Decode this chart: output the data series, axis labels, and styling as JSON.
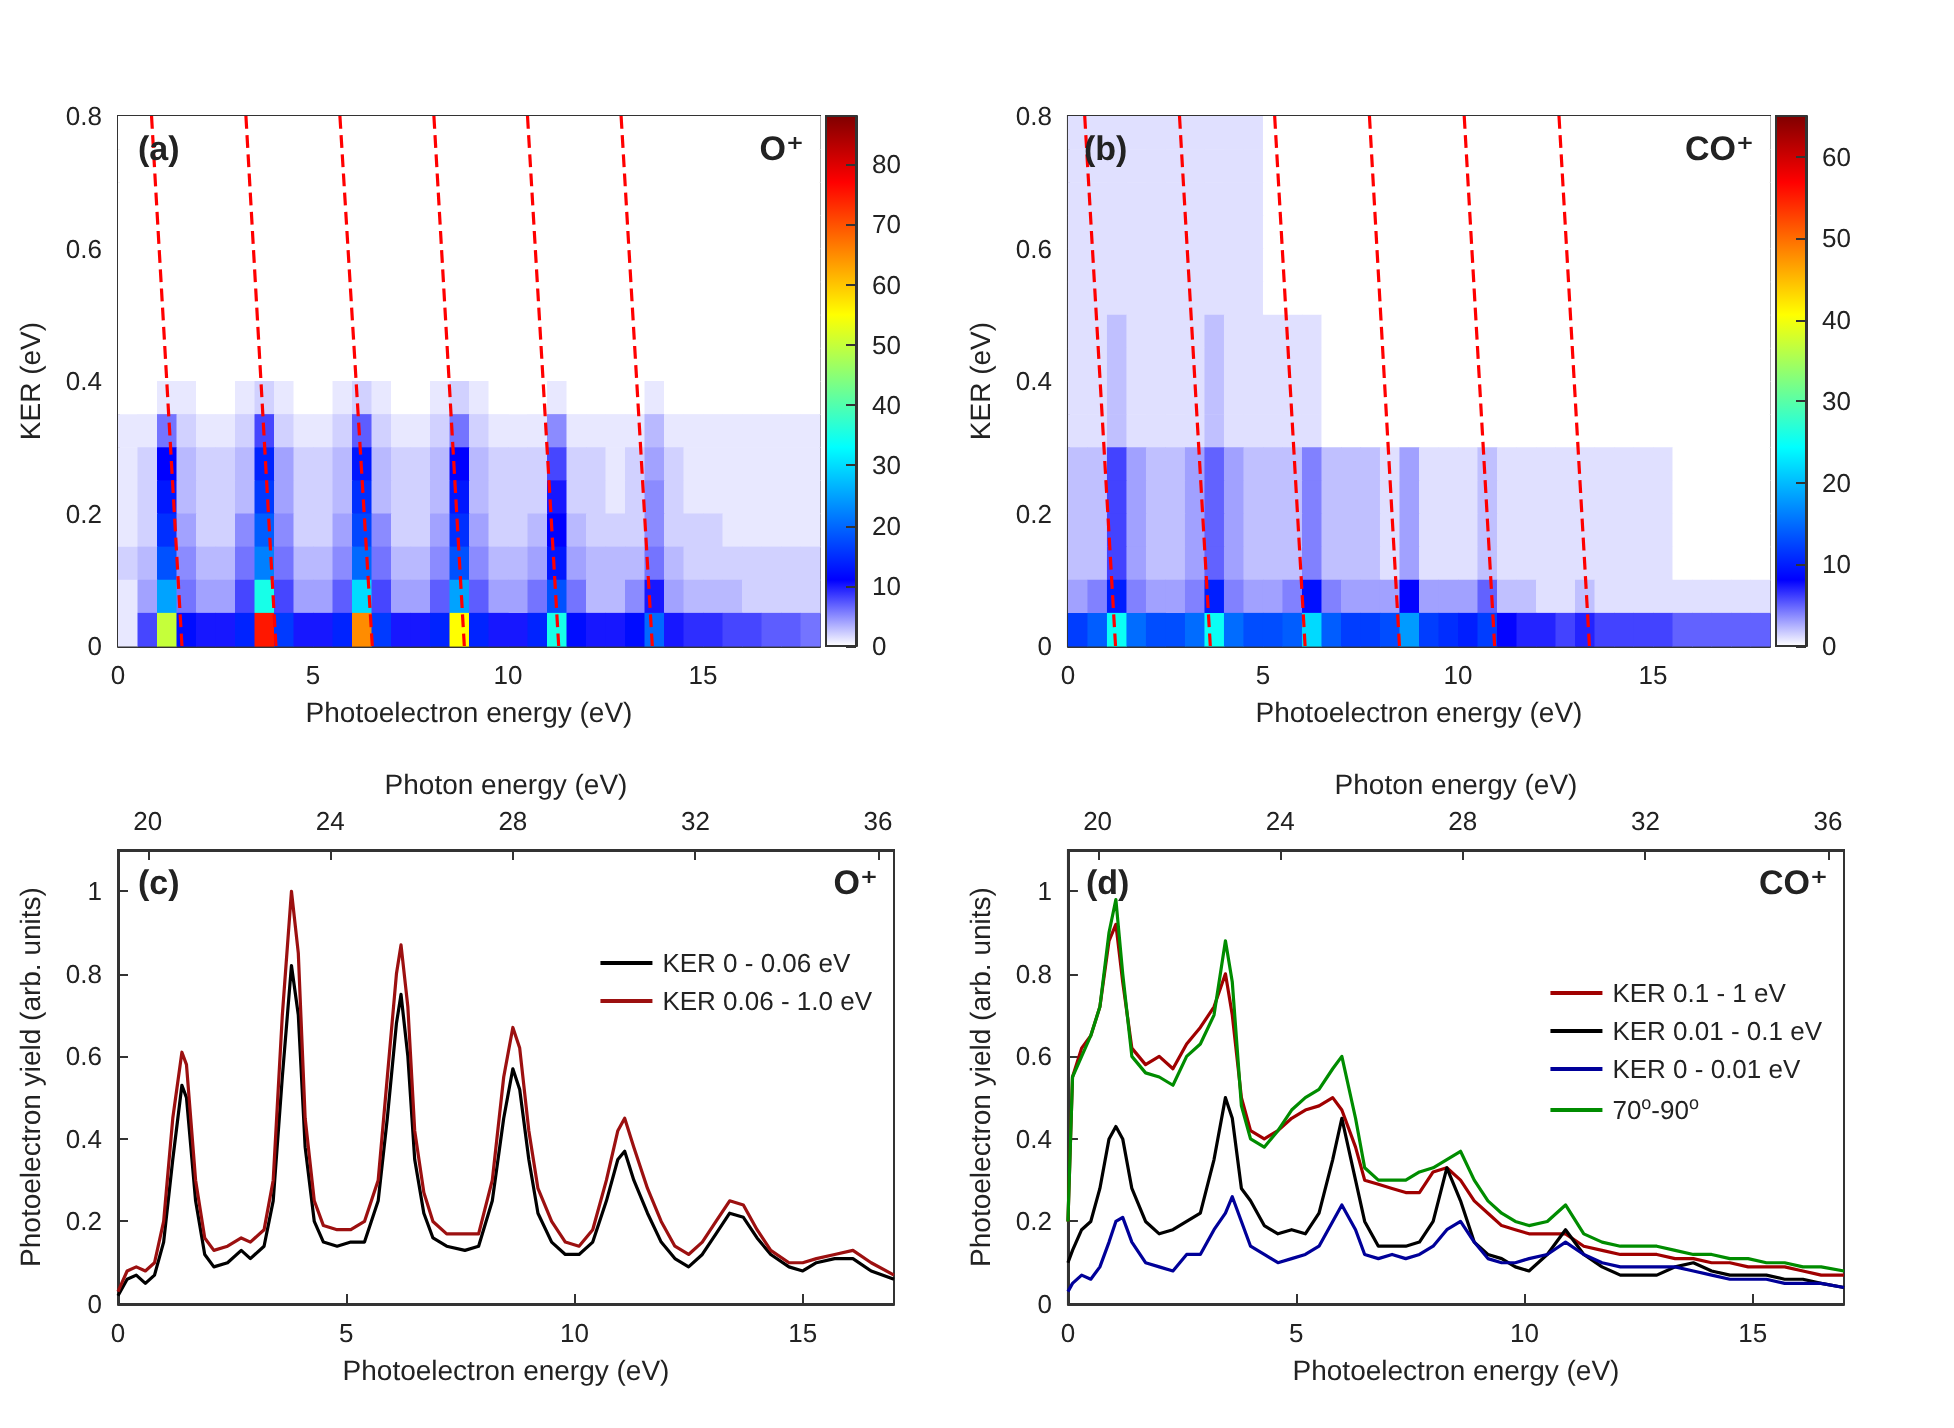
{
  "chart_data": [
    {
      "type": "heatmap",
      "xlabel": "Photoelectron energy (eV)",
      "ylabel": "KER (eV)",
      "annotations": [
        "(a)",
        "O⁺"
      ],
      "xlim": [
        0,
        18
      ],
      "xticks": [
        0,
        5,
        10,
        15
      ],
      "ylim": [
        0,
        0.8
      ],
      "yticks": [
        0,
        0.2,
        0.4,
        0.6,
        0.8
      ],
      "clim": [
        0,
        88
      ],
      "cticks": [
        0,
        10,
        20,
        30,
        40,
        50,
        60,
        70,
        80
      ],
      "line_style": "dashed",
      "marker": "none",
      "cells": [
        [
          0,
          0,
          0,
          0,
          0,
          0,
          0,
          0,
          0,
          0,
          0,
          0,
          0,
          0,
          0,
          0,
          0,
          0,
          0,
          0,
          0,
          0,
          0,
          0,
          0,
          0,
          0,
          0,
          0,
          0,
          0,
          0,
          0,
          0,
          0,
          0
        ],
        [
          0,
          0,
          0,
          0,
          0,
          0,
          0,
          0,
          0,
          0,
          0,
          0,
          0,
          0,
          0,
          0,
          0,
          0,
          0,
          0,
          0,
          0,
          0,
          0,
          0,
          0,
          0,
          0,
          0,
          0,
          0,
          0,
          0,
          0,
          0,
          0
        ],
        [
          0,
          0,
          0,
          0,
          0,
          0,
          0,
          0,
          0,
          0,
          0,
          0,
          0,
          0,
          0,
          0,
          0,
          0,
          0,
          0,
          0,
          0,
          0,
          0,
          0,
          0,
          0,
          0,
          0,
          0,
          0,
          0,
          0,
          0,
          0,
          0
        ],
        [
          0,
          0,
          0,
          0,
          0,
          0,
          0,
          0,
          0,
          0,
          0,
          0,
          0,
          0,
          0,
          0,
          0,
          0,
          0,
          0,
          0,
          0,
          0,
          0,
          0,
          0,
          0,
          0,
          0,
          0,
          0,
          0,
          0,
          0,
          0,
          0
        ],
        [
          0,
          0,
          0,
          0,
          0,
          0,
          0,
          0,
          0,
          0,
          0,
          0,
          0,
          0,
          0,
          0,
          0,
          0,
          0,
          0,
          0,
          0,
          0,
          0,
          0,
          0,
          0,
          0,
          0,
          0,
          0,
          0,
          0,
          0,
          0,
          0
        ],
        [
          0,
          0,
          0,
          0,
          0,
          0,
          0,
          0,
          0,
          0,
          0,
          0,
          0,
          0,
          0,
          0,
          0,
          0,
          0,
          0,
          0,
          0,
          0,
          0,
          0,
          0,
          0,
          0,
          0,
          0,
          0,
          0,
          0,
          0,
          0,
          0
        ],
        [
          0,
          0,
          0,
          0,
          0,
          0,
          0,
          0,
          0,
          0,
          0,
          0,
          0,
          0,
          0,
          0,
          0,
          0,
          0,
          0,
          0,
          0,
          0,
          0,
          0,
          0,
          0,
          0,
          0,
          0,
          0,
          0,
          0,
          0,
          0,
          0
        ],
        [
          0,
          0,
          0,
          0,
          0,
          0,
          0,
          0,
          0,
          0,
          0,
          0,
          0,
          0,
          0,
          0,
          0,
          0,
          0,
          0,
          0,
          0,
          0,
          0,
          0,
          0,
          0,
          0,
          0,
          0,
          0,
          0,
          0,
          0,
          0,
          0
        ],
        [
          0,
          0,
          1,
          1,
          0,
          0,
          1,
          2,
          1,
          0,
          0,
          1,
          2,
          1,
          0,
          0,
          1,
          2,
          1,
          0,
          0,
          0,
          1,
          0,
          0,
          0,
          0,
          1,
          0,
          0,
          0,
          0,
          0,
          0,
          0,
          0
        ],
        [
          1,
          1,
          6,
          2,
          1,
          1,
          2,
          8,
          2,
          1,
          1,
          2,
          7,
          2,
          1,
          1,
          2,
          6,
          2,
          1,
          1,
          1,
          5,
          1,
          1,
          1,
          1,
          3,
          1,
          1,
          1,
          1,
          1,
          1,
          1,
          1
        ],
        [
          1,
          2,
          11,
          3,
          2,
          2,
          3,
          14,
          4,
          2,
          2,
          3,
          13,
          3,
          2,
          2,
          3,
          11,
          3,
          2,
          2,
          2,
          8,
          2,
          2,
          1,
          2,
          4,
          2,
          1,
          1,
          1,
          1,
          1,
          1,
          1
        ],
        [
          1,
          2,
          13,
          3,
          2,
          2,
          3,
          16,
          4,
          2,
          2,
          3,
          15,
          3,
          2,
          2,
          3,
          13,
          3,
          2,
          2,
          2,
          10,
          2,
          2,
          1,
          2,
          5,
          2,
          1,
          1,
          1,
          1,
          1,
          1,
          1
        ],
        [
          1,
          2,
          15,
          4,
          2,
          2,
          5,
          19,
          5,
          2,
          2,
          4,
          17,
          5,
          2,
          2,
          4,
          15,
          4,
          2,
          2,
          3,
          11,
          3,
          2,
          2,
          2,
          5,
          2,
          2,
          2,
          1,
          1,
          1,
          1,
          1
        ],
        [
          2,
          3,
          18,
          5,
          3,
          3,
          6,
          22,
          6,
          3,
          3,
          5,
          20,
          6,
          3,
          3,
          5,
          18,
          5,
          3,
          3,
          4,
          13,
          4,
          3,
          3,
          3,
          6,
          3,
          2,
          2,
          2,
          2,
          2,
          2,
          2
        ],
        [
          1,
          4,
          25,
          6,
          4,
          4,
          8,
          35,
          8,
          4,
          4,
          7,
          30,
          8,
          4,
          4,
          7,
          25,
          7,
          4,
          4,
          6,
          18,
          6,
          3,
          3,
          5,
          10,
          4,
          3,
          3,
          3,
          2,
          2,
          2,
          2
        ],
        [
          1,
          8,
          50,
          12,
          10,
          10,
          14,
          75,
          16,
          10,
          10,
          14,
          65,
          16,
          10,
          10,
          14,
          55,
          14,
          10,
          10,
          14,
          35,
          12,
          10,
          10,
          12,
          20,
          10,
          9,
          9,
          8,
          8,
          7,
          7,
          6
        ]
      ],
      "series": [
        {
          "type": "line",
          "color": "#ff0000",
          "x": [
            0.86,
            1.64
          ],
          "values": [
            0.8,
            0
          ]
        },
        {
          "type": "line",
          "color": "#ff0000",
          "x": [
            3.28,
            4.05
          ],
          "values": [
            0.8,
            0
          ]
        },
        {
          "type": "line",
          "color": "#ff0000",
          "x": [
            5.69,
            6.52
          ],
          "values": [
            0.8,
            0
          ]
        },
        {
          "type": "line",
          "color": "#ff0000",
          "x": [
            8.1,
            8.88
          ],
          "values": [
            0.8,
            0
          ]
        },
        {
          "type": "line",
          "color": "#ff0000",
          "x": [
            10.5,
            11.3
          ],
          "values": [
            0.8,
            0
          ]
        },
        {
          "type": "line",
          "color": "#ff0000",
          "x": [
            12.9,
            13.7
          ],
          "values": [
            0.8,
            0
          ]
        }
      ]
    },
    {
      "type": "heatmap",
      "xlabel": "Photoelectron energy (eV)",
      "ylabel": "KER (eV)",
      "annotations": [
        "(b)",
        "CO⁺"
      ],
      "xlim": [
        0,
        18
      ],
      "xticks": [
        0,
        5,
        10,
        15
      ],
      "ylim": [
        0,
        0.8
      ],
      "yticks": [
        0,
        0.2,
        0.4,
        0.6,
        0.8
      ],
      "clim": [
        0,
        65
      ],
      "cticks": [
        0,
        10,
        20,
        30,
        40,
        50,
        60
      ],
      "line_style": "dashed",
      "marker": "none",
      "cells": [
        [
          1,
          1,
          1,
          1,
          1,
          1,
          1,
          1,
          1,
          1,
          0,
          0,
          0,
          0,
          0,
          0,
          0,
          0,
          0,
          0,
          0,
          0,
          0,
          0,
          0,
          0,
          0,
          0,
          0,
          0,
          0,
          0,
          0,
          0,
          0,
          0
        ],
        [
          1,
          1,
          1,
          1,
          1,
          1,
          1,
          1,
          1,
          1,
          0,
          0,
          0,
          0,
          0,
          0,
          0,
          0,
          0,
          0,
          0,
          0,
          0,
          0,
          0,
          0,
          0,
          0,
          0,
          0,
          0,
          0,
          0,
          0,
          0,
          0
        ],
        [
          1,
          1,
          1,
          1,
          1,
          1,
          1,
          1,
          1,
          1,
          0,
          0,
          0,
          0,
          0,
          0,
          0,
          0,
          0,
          0,
          0,
          0,
          0,
          0,
          0,
          0,
          0,
          0,
          0,
          0,
          0,
          0,
          0,
          0,
          0,
          0
        ],
        [
          1,
          1,
          1,
          1,
          1,
          1,
          1,
          1,
          1,
          1,
          0,
          0,
          0,
          0,
          0,
          0,
          0,
          0,
          0,
          0,
          0,
          0,
          0,
          0,
          0,
          0,
          0,
          0,
          0,
          0,
          0,
          0,
          0,
          0,
          0,
          0
        ],
        [
          1,
          1,
          1,
          1,
          1,
          1,
          1,
          1,
          1,
          1,
          0,
          0,
          0,
          0,
          0,
          0,
          0,
          0,
          0,
          0,
          0,
          0,
          0,
          0,
          0,
          0,
          0,
          0,
          0,
          0,
          0,
          0,
          0,
          0,
          0,
          0
        ],
        [
          1,
          1,
          1,
          1,
          1,
          1,
          1,
          1,
          1,
          1,
          0,
          0,
          0,
          0,
          0,
          0,
          0,
          0,
          0,
          0,
          0,
          0,
          0,
          0,
          0,
          0,
          0,
          0,
          0,
          0,
          0,
          0,
          0,
          0,
          0,
          0
        ],
        [
          1,
          1,
          2,
          1,
          1,
          1,
          1,
          2,
          1,
          1,
          1,
          1,
          1,
          0,
          0,
          0,
          0,
          0,
          0,
          0,
          0,
          0,
          0,
          0,
          0,
          0,
          0,
          0,
          0,
          0,
          0,
          0,
          0,
          0,
          0,
          0
        ],
        [
          1,
          1,
          2,
          1,
          1,
          1,
          1,
          2,
          1,
          1,
          1,
          1,
          1,
          0,
          0,
          0,
          0,
          0,
          0,
          0,
          0,
          0,
          0,
          0,
          0,
          0,
          0,
          0,
          0,
          0,
          0,
          0,
          0,
          0,
          0,
          0
        ],
        [
          1,
          1,
          2,
          1,
          1,
          1,
          1,
          2,
          1,
          1,
          1,
          1,
          1,
          0,
          0,
          0,
          0,
          0,
          0,
          0,
          0,
          0,
          0,
          0,
          0,
          0,
          0,
          0,
          0,
          0,
          0,
          0,
          0,
          0,
          0,
          0
        ],
        [
          1,
          1,
          2,
          1,
          1,
          1,
          1,
          2,
          1,
          1,
          1,
          1,
          1,
          0,
          0,
          0,
          0,
          0,
          0,
          0,
          0,
          0,
          0,
          0,
          0,
          0,
          0,
          0,
          0,
          0,
          0,
          0,
          0,
          0,
          0,
          0
        ],
        [
          2,
          2,
          6,
          3,
          2,
          2,
          3,
          5,
          3,
          2,
          2,
          2,
          4,
          2,
          2,
          2,
          1,
          3,
          1,
          1,
          1,
          2,
          1,
          1,
          1,
          1,
          1,
          1,
          1,
          1,
          1,
          0,
          0,
          0,
          0,
          0
        ],
        [
          2,
          2,
          6,
          3,
          2,
          2,
          3,
          5,
          3,
          2,
          2,
          2,
          4,
          2,
          2,
          2,
          1,
          3,
          1,
          1,
          1,
          2,
          1,
          1,
          1,
          1,
          1,
          1,
          1,
          1,
          1,
          0,
          0,
          0,
          0,
          0
        ],
        [
          2,
          2,
          6,
          3,
          2,
          2,
          3,
          5,
          3,
          2,
          2,
          2,
          4,
          2,
          2,
          2,
          1,
          3,
          1,
          1,
          1,
          2,
          1,
          1,
          1,
          1,
          1,
          1,
          1,
          1,
          1,
          0,
          0,
          0,
          0,
          0
        ],
        [
          2,
          2,
          6,
          3,
          2,
          2,
          3,
          5,
          3,
          2,
          2,
          2,
          4,
          2,
          2,
          2,
          1,
          3,
          1,
          1,
          1,
          2,
          1,
          1,
          1,
          1,
          1,
          1,
          1,
          1,
          1,
          0,
          0,
          0,
          0,
          0
        ],
        [
          3,
          4,
          10,
          4,
          3,
          3,
          4,
          10,
          4,
          3,
          3,
          4,
          9,
          4,
          3,
          3,
          3,
          8,
          3,
          3,
          3,
          5,
          2,
          2,
          1,
          1,
          2,
          1,
          1,
          1,
          1,
          1,
          1,
          1,
          1,
          1
        ],
        [
          12,
          14,
          25,
          15,
          13,
          13,
          15,
          25,
          15,
          13,
          13,
          14,
          22,
          14,
          12,
          12,
          13,
          18,
          12,
          11,
          10,
          12,
          8,
          7,
          7,
          6,
          7,
          6,
          6,
          6,
          6,
          5,
          5,
          5,
          5,
          5
        ]
      ],
      "series": [
        {
          "type": "line",
          "color": "#ff0000",
          "x": [
            0.43,
            1.22
          ],
          "values": [
            0.8,
            0
          ]
        },
        {
          "type": "line",
          "color": "#ff0000",
          "x": [
            2.86,
            3.65
          ],
          "values": [
            0.8,
            0
          ]
        },
        {
          "type": "line",
          "color": "#ff0000",
          "x": [
            5.3,
            6.08
          ],
          "values": [
            0.8,
            0
          ]
        },
        {
          "type": "line",
          "color": "#ff0000",
          "x": [
            7.73,
            8.5
          ],
          "values": [
            0.8,
            0
          ]
        },
        {
          "type": "line",
          "color": "#ff0000",
          "x": [
            10.16,
            10.94
          ],
          "values": [
            0.8,
            0
          ]
        },
        {
          "type": "line",
          "color": "#ff0000",
          "x": [
            12.59,
            13.37
          ],
          "values": [
            0.8,
            0
          ]
        }
      ]
    },
    {
      "type": "line",
      "xlabel": "Photoelectron energy (eV)",
      "ylabel": "Photoelectron yield (arb. units)",
      "x2label": "Photon energy (eV)",
      "annotations": [
        "(c)",
        "O⁺"
      ],
      "xlim": [
        0,
        17
      ],
      "xticks": [
        0,
        5,
        10,
        15
      ],
      "x2lim": [
        19.35,
        36.35
      ],
      "x2ticks": [
        20,
        24,
        28,
        32,
        36
      ],
      "ylim": [
        0,
        1.1
      ],
      "yticks": [
        0,
        0.2,
        0.4,
        0.6,
        0.8,
        1
      ],
      "legend": "top right",
      "line_style": "solid",
      "marker": "none",
      "x": [
        0,
        0.2,
        0.4,
        0.6,
        0.8,
        1.0,
        1.2,
        1.4,
        1.5,
        1.7,
        1.9,
        2.1,
        2.4,
        2.7,
        2.9,
        3.2,
        3.4,
        3.6,
        3.8,
        3.95,
        4.1,
        4.3,
        4.5,
        4.8,
        5.1,
        5.4,
        5.7,
        5.9,
        6.1,
        6.2,
        6.35,
        6.5,
        6.7,
        6.9,
        7.2,
        7.6,
        7.9,
        8.2,
        8.45,
        8.65,
        8.8,
        9.0,
        9.2,
        9.5,
        9.8,
        10.1,
        10.4,
        10.7,
        10.95,
        11.1,
        11.3,
        11.6,
        11.9,
        12.2,
        12.5,
        12.8,
        13.1,
        13.4,
        13.7,
        14.0,
        14.3,
        14.7,
        15.0,
        15.3,
        15.7,
        16.1,
        16.5,
        17.0
      ],
      "series": [
        {
          "name": "KER 0 - 0.06 eV",
          "color": "#000000",
          "values": [
            0.02,
            0.06,
            0.07,
            0.05,
            0.07,
            0.15,
            0.35,
            0.53,
            0.5,
            0.25,
            0.12,
            0.09,
            0.1,
            0.13,
            0.11,
            0.14,
            0.25,
            0.55,
            0.82,
            0.7,
            0.38,
            0.2,
            0.15,
            0.14,
            0.15,
            0.15,
            0.25,
            0.45,
            0.68,
            0.75,
            0.6,
            0.35,
            0.22,
            0.16,
            0.14,
            0.13,
            0.14,
            0.25,
            0.45,
            0.57,
            0.52,
            0.35,
            0.22,
            0.15,
            0.12,
            0.12,
            0.15,
            0.25,
            0.35,
            0.37,
            0.3,
            0.22,
            0.15,
            0.11,
            0.09,
            0.12,
            0.17,
            0.22,
            0.21,
            0.16,
            0.12,
            0.09,
            0.08,
            0.1,
            0.11,
            0.11,
            0.08,
            0.06
          ]
        },
        {
          "name": "KER 0.06 - 1.0 eV",
          "color": "#9c1010",
          "values": [
            0.03,
            0.08,
            0.09,
            0.08,
            0.1,
            0.2,
            0.45,
            0.61,
            0.58,
            0.3,
            0.16,
            0.13,
            0.14,
            0.16,
            0.15,
            0.18,
            0.3,
            0.7,
            1.0,
            0.85,
            0.45,
            0.25,
            0.19,
            0.18,
            0.18,
            0.2,
            0.3,
            0.55,
            0.8,
            0.87,
            0.72,
            0.42,
            0.27,
            0.2,
            0.17,
            0.17,
            0.17,
            0.3,
            0.55,
            0.67,
            0.62,
            0.42,
            0.28,
            0.2,
            0.15,
            0.14,
            0.18,
            0.3,
            0.42,
            0.45,
            0.38,
            0.28,
            0.2,
            0.14,
            0.12,
            0.15,
            0.2,
            0.25,
            0.24,
            0.18,
            0.13,
            0.1,
            0.1,
            0.11,
            0.12,
            0.13,
            0.1,
            0.07
          ]
        }
      ]
    },
    {
      "type": "line",
      "xlabel": "Photoelectron energy (eV)",
      "ylabel": "Photoelectron yield (arb. units)",
      "x2label": "Photon energy (eV)",
      "annotations": [
        "(d)",
        "CO⁺"
      ],
      "xlim": [
        0,
        17
      ],
      "xticks": [
        0,
        5,
        10,
        15
      ],
      "x2lim": [
        19.35,
        36.35
      ],
      "x2ticks": [
        20,
        24,
        28,
        32,
        36
      ],
      "ylim": [
        0,
        1.1
      ],
      "yticks": [
        0,
        0.2,
        0.4,
        0.6,
        0.8,
        1
      ],
      "legend": "right",
      "line_style": "solid",
      "marker": "none",
      "x": [
        0,
        0.1,
        0.3,
        0.5,
        0.7,
        0.9,
        1.05,
        1.2,
        1.4,
        1.7,
        2.0,
        2.3,
        2.6,
        2.9,
        3.2,
        3.45,
        3.6,
        3.8,
        4.0,
        4.3,
        4.6,
        4.9,
        5.2,
        5.5,
        5.8,
        6.0,
        6.3,
        6.5,
        6.8,
        7.1,
        7.4,
        7.7,
        8.0,
        8.3,
        8.6,
        8.9,
        9.2,
        9.5,
        9.8,
        10.1,
        10.5,
        10.9,
        11.3,
        11.7,
        12.1,
        12.5,
        12.9,
        13.3,
        13.7,
        14.1,
        14.5,
        14.9,
        15.3,
        15.7,
        16.1,
        16.5,
        17.0
      ],
      "series": [
        {
          "name": "KER 0.1 - 1 eV",
          "color": "#a00000",
          "values": [
            0.2,
            0.55,
            0.62,
            0.65,
            0.72,
            0.88,
            0.92,
            0.78,
            0.62,
            0.58,
            0.6,
            0.57,
            0.63,
            0.67,
            0.72,
            0.8,
            0.7,
            0.5,
            0.42,
            0.4,
            0.42,
            0.45,
            0.47,
            0.48,
            0.5,
            0.47,
            0.38,
            0.3,
            0.29,
            0.28,
            0.27,
            0.27,
            0.32,
            0.33,
            0.3,
            0.25,
            0.22,
            0.19,
            0.18,
            0.17,
            0.17,
            0.17,
            0.14,
            0.13,
            0.12,
            0.12,
            0.12,
            0.11,
            0.11,
            0.1,
            0.1,
            0.09,
            0.09,
            0.09,
            0.08,
            0.07,
            0.07
          ]
        },
        {
          "name": "KER 0.01 - 0.1 eV",
          "color": "#000000",
          "values": [
            0.1,
            0.13,
            0.18,
            0.2,
            0.28,
            0.4,
            0.43,
            0.4,
            0.28,
            0.2,
            0.17,
            0.18,
            0.2,
            0.22,
            0.35,
            0.5,
            0.45,
            0.28,
            0.25,
            0.19,
            0.17,
            0.18,
            0.17,
            0.22,
            0.35,
            0.45,
            0.3,
            0.2,
            0.14,
            0.14,
            0.14,
            0.15,
            0.2,
            0.33,
            0.25,
            0.15,
            0.12,
            0.11,
            0.09,
            0.08,
            0.12,
            0.18,
            0.12,
            0.09,
            0.07,
            0.07,
            0.07,
            0.09,
            0.1,
            0.08,
            0.07,
            0.07,
            0.07,
            0.06,
            0.06,
            0.05,
            0.04
          ]
        },
        {
          "name": "KER 0 - 0.01 eV",
          "color": "#000099",
          "values": [
            0.03,
            0.05,
            0.07,
            0.06,
            0.09,
            0.15,
            0.2,
            0.21,
            0.15,
            0.1,
            0.09,
            0.08,
            0.12,
            0.12,
            0.18,
            0.22,
            0.26,
            0.2,
            0.14,
            0.12,
            0.1,
            0.11,
            0.12,
            0.14,
            0.2,
            0.24,
            0.18,
            0.12,
            0.11,
            0.12,
            0.11,
            0.12,
            0.14,
            0.18,
            0.2,
            0.15,
            0.11,
            0.1,
            0.1,
            0.11,
            0.12,
            0.15,
            0.12,
            0.1,
            0.09,
            0.09,
            0.09,
            0.09,
            0.08,
            0.07,
            0.06,
            0.06,
            0.06,
            0.05,
            0.05,
            0.05,
            0.04
          ]
        },
        {
          "name": "70$^{o}$-90$^{o}$",
          "color": "#008c00",
          "values": [
            0.2,
            0.55,
            0.6,
            0.65,
            0.72,
            0.9,
            0.98,
            0.8,
            0.6,
            0.56,
            0.55,
            0.53,
            0.6,
            0.63,
            0.7,
            0.88,
            0.78,
            0.48,
            0.4,
            0.38,
            0.42,
            0.47,
            0.5,
            0.52,
            0.57,
            0.6,
            0.45,
            0.33,
            0.3,
            0.3,
            0.3,
            0.32,
            0.33,
            0.35,
            0.37,
            0.3,
            0.25,
            0.22,
            0.2,
            0.19,
            0.2,
            0.24,
            0.17,
            0.15,
            0.14,
            0.14,
            0.14,
            0.13,
            0.12,
            0.12,
            0.11,
            0.11,
            0.1,
            0.1,
            0.09,
            0.09,
            0.08
          ]
        }
      ]
    }
  ]
}
